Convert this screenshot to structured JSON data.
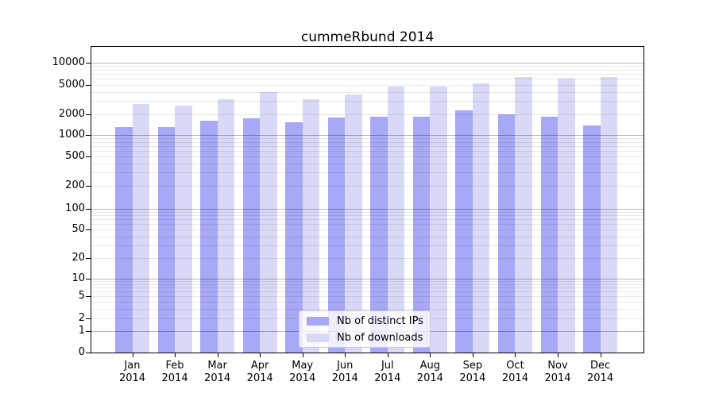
{
  "chart_data": {
    "type": "bar",
    "title": "cummeRbund 2014",
    "categories": [
      "Jan",
      "Feb",
      "Mar",
      "Apr",
      "May",
      "Jun",
      "Jul",
      "Aug",
      "Sep",
      "Oct",
      "Nov",
      "Dec"
    ],
    "year": "2014",
    "series": [
      {
        "name": "Nb of distinct IPs",
        "color": "#a8a8f6",
        "values": [
          1300,
          1300,
          1610,
          1750,
          1510,
          1790,
          1810,
          1810,
          2250,
          1990,
          1810,
          1370
        ]
      },
      {
        "name": "Nb of downloads",
        "color": "#d9d9f7",
        "values": [
          2750,
          2610,
          3140,
          3920,
          3140,
          3670,
          4670,
          4670,
          5130,
          6300,
          6090,
          6300
        ]
      }
    ],
    "yscale": "symlog",
    "yticks": [
      0,
      1,
      2,
      5,
      10,
      20,
      50,
      100,
      200,
      500,
      1000,
      2000,
      5000,
      10000
    ],
    "major_gridline_values": [
      1,
      10,
      100,
      1000,
      10000
    ],
    "grid": "horizontal major+minor, drawn over bars",
    "legend_position": "lower center",
    "xlabel": "",
    "ylabel": ""
  }
}
